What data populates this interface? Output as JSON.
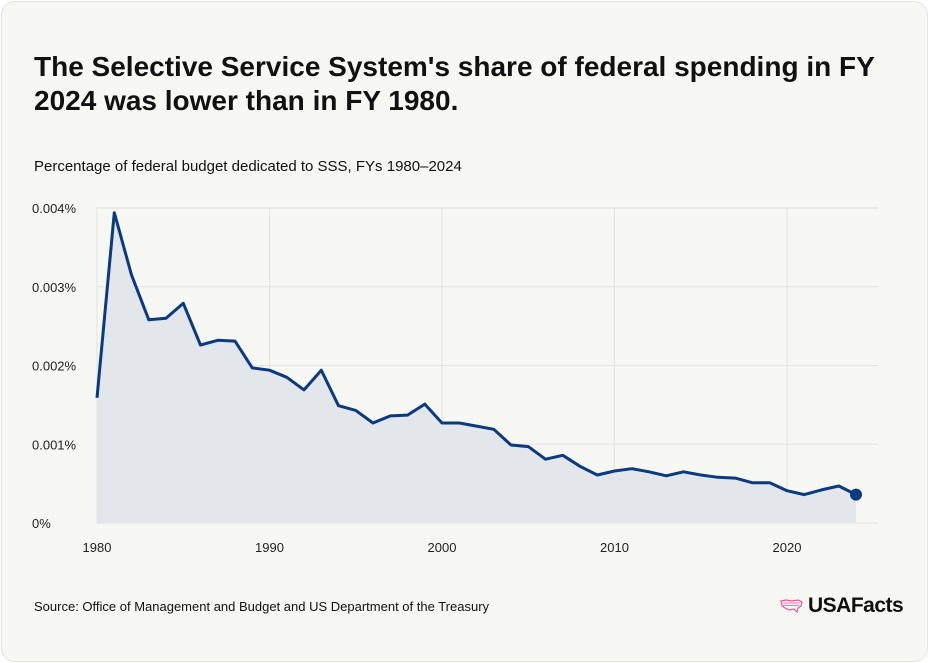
{
  "title": "The Selective Service System's share of federal spending in FY 2024 was lower than in FY 1980.",
  "subtitle": "Percentage of federal budget dedicated to SSS, FYs 1980–2024",
  "source": "Source: Office of Management and Budget and US Department of the Treasury",
  "logo": {
    "text": "USAFacts",
    "icon": "us-map-icon",
    "icon_color": "#e8559b"
  },
  "colors": {
    "line": "#0a3a80",
    "fill": "#e3e6ea",
    "grid": "#e2e2e0",
    "background": "#f7f7f3"
  },
  "chart_data": {
    "type": "area",
    "title": "The Selective Service System's share of federal spending in FY 2024 was lower than in FY 1980.",
    "subtitle": "Percentage of federal budget dedicated to SSS, FYs 1980–2024",
    "xlabel": "",
    "ylabel": "",
    "xlim": [
      1980,
      2024
    ],
    "ylim": [
      0,
      0.004
    ],
    "x_ticks": [
      1980,
      1990,
      2000,
      2010,
      2020
    ],
    "x_tick_labels": [
      "1980",
      "1990",
      "2000",
      "2010",
      "2020"
    ],
    "y_ticks": [
      0,
      0.001,
      0.002,
      0.003,
      0.004
    ],
    "y_tick_labels": [
      "0%",
      "0.001%",
      "0.002%",
      "0.003%",
      "0.004%"
    ],
    "grid": true,
    "legend": "none",
    "end_marker": true,
    "x": [
      1980,
      1981,
      1982,
      1983,
      1984,
      1985,
      1986,
      1987,
      1988,
      1989,
      1990,
      1991,
      1992,
      1993,
      1994,
      1995,
      1996,
      1997,
      1998,
      1999,
      2000,
      2001,
      2002,
      2003,
      2004,
      2005,
      2006,
      2007,
      2008,
      2009,
      2010,
      2011,
      2012,
      2013,
      2014,
      2015,
      2016,
      2017,
      2018,
      2019,
      2020,
      2021,
      2022,
      2023,
      2024
    ],
    "values": [
      0.00159,
      0.00394,
      0.00315,
      0.00258,
      0.0026,
      0.00279,
      0.00226,
      0.00232,
      0.00231,
      0.00197,
      0.00194,
      0.00185,
      0.00169,
      0.00194,
      0.00149,
      0.00143,
      0.00127,
      0.00136,
      0.00137,
      0.00151,
      0.00127,
      0.00127,
      0.00123,
      0.00119,
      0.00099,
      0.00097,
      0.00081,
      0.00086,
      0.00072,
      0.00061,
      0.00066,
      0.00069,
      0.00065,
      0.0006,
      0.00065,
      0.00061,
      0.00058,
      0.00057,
      0.00051,
      0.00051,
      0.00041,
      0.00036,
      0.00042,
      0.00047,
      0.00036
    ]
  }
}
